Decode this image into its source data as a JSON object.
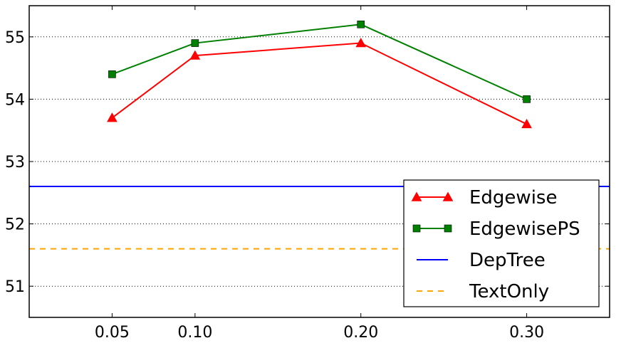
{
  "chart_data": {
    "type": "line",
    "title": "",
    "xlabel": "",
    "ylabel": "",
    "x": [
      0.05,
      0.1,
      0.2,
      0.3
    ],
    "x_tick_labels": [
      "0.05",
      "0.10",
      "0.20",
      "0.30"
    ],
    "xlim": [
      0.0,
      0.35
    ],
    "ylim": [
      50.5,
      55.5
    ],
    "y_ticks": [
      51,
      52,
      53,
      54,
      55
    ],
    "y_tick_labels": [
      "51",
      "52",
      "53",
      "54",
      "55"
    ],
    "grid": "y-dotted",
    "legend_position": "lower-right",
    "series": [
      {
        "name": "Edgewise",
        "values": [
          53.7,
          54.7,
          54.9,
          53.6
        ],
        "color": "#ff0000",
        "marker": "triangle",
        "line_style": "solid"
      },
      {
        "name": "EdgewisePS",
        "values": [
          54.4,
          54.9,
          55.2,
          54.0
        ],
        "color": "#008000",
        "marker": "square",
        "line_style": "solid"
      }
    ],
    "reference_lines": [
      {
        "name": "DepTree",
        "value": 52.6,
        "color": "#0000ff",
        "line_style": "solid"
      },
      {
        "name": "TextOnly",
        "value": 51.6,
        "color": "#ffa500",
        "line_style": "dashed"
      }
    ]
  }
}
